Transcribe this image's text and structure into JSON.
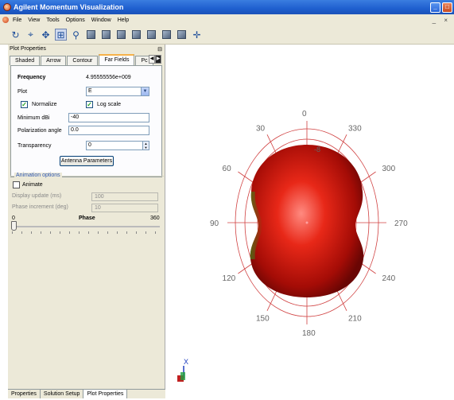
{
  "window": {
    "title": "Agilent Momentum Visualization",
    "minimize": "_",
    "maximize": "□",
    "mdi_controls": "_ ×"
  },
  "menu": [
    "File",
    "View",
    "Tools",
    "Options",
    "Window",
    "Help"
  ],
  "toolbar": {
    "icons": [
      "rotate-icon",
      "select-icon",
      "pan-icon",
      "zoom-box-icon",
      "zoom-icon",
      "cube-view-1-icon",
      "cube-view-2-icon",
      "cube-view-3-icon",
      "cube-view-4-icon",
      "cube-view-5-icon",
      "cube-view-6-icon",
      "cube-view-7-icon",
      "axis-icon"
    ]
  },
  "panel": {
    "title": "Plot Properties",
    "tabs": [
      "Shaded",
      "Arrow",
      "Contour",
      "Far Fields",
      "Pc"
    ],
    "active_tab": "Far Fields",
    "frequency_label": "Frequency",
    "frequency_value": "4.95555556e+009",
    "plot_label": "Plot",
    "plot_value": "E",
    "normalize_label": "Normalize",
    "normalize_checked": true,
    "logscale_label": "Log scale",
    "logscale_checked": true,
    "min_dbi_label": "Minimum dBi",
    "min_dbi_value": "-40",
    "pol_angle_label": "Polarization angle",
    "pol_angle_value": "0.0",
    "transparency_label": "Transparency",
    "transparency_value": "0",
    "antenna_button": "Antenna Parameters"
  },
  "animation": {
    "legend": "Animation options",
    "animate_label": "Animate",
    "animate_checked": false,
    "display_update_label": "Display update (ms)",
    "display_update_value": "100",
    "phase_increment_label": "Phase increment (deg)",
    "phase_increment_value": "10",
    "phase_min": "0",
    "phase_label": "Phase",
    "phase_max": "360",
    "phase_value": 0
  },
  "bottom_tabs": [
    "Properties",
    "Solution Setup",
    "Plot Properties"
  ],
  "active_bottom_tab": "Plot Properties",
  "viewport": {
    "angle_labels": [
      "0",
      "30",
      "60",
      "90",
      "120",
      "150",
      "180",
      "210",
      "240",
      "270",
      "300",
      "330"
    ],
    "radial_label": "-8",
    "axis_label": "X",
    "colors": {
      "surface": "#cc1a10",
      "rings": "#d04040"
    }
  }
}
